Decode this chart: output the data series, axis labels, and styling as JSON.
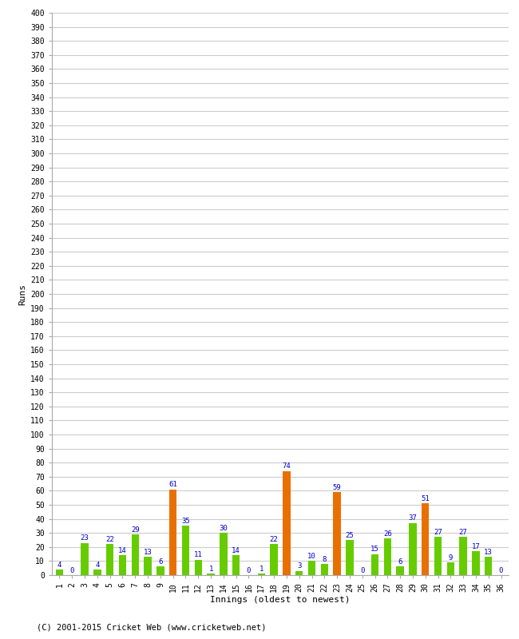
{
  "innings": [
    1,
    2,
    3,
    4,
    5,
    6,
    7,
    8,
    9,
    10,
    11,
    12,
    13,
    14,
    15,
    16,
    17,
    18,
    19,
    20,
    21,
    22,
    23,
    24,
    25,
    26,
    27,
    28,
    29,
    30,
    31,
    32,
    33,
    34,
    35,
    36
  ],
  "values": [
    4,
    0,
    23,
    4,
    22,
    14,
    29,
    13,
    6,
    61,
    35,
    11,
    1,
    30,
    14,
    0,
    1,
    22,
    74,
    3,
    10,
    8,
    59,
    25,
    0,
    15,
    26,
    6,
    37,
    51,
    27,
    9,
    27,
    17,
    13,
    0
  ],
  "colors": [
    "#66cc00",
    "#66cc00",
    "#66cc00",
    "#66cc00",
    "#66cc00",
    "#66cc00",
    "#66cc00",
    "#66cc00",
    "#66cc00",
    "#e87000",
    "#66cc00",
    "#66cc00",
    "#66cc00",
    "#66cc00",
    "#66cc00",
    "#66cc00",
    "#66cc00",
    "#66cc00",
    "#e87000",
    "#66cc00",
    "#66cc00",
    "#66cc00",
    "#e87000",
    "#66cc00",
    "#66cc00",
    "#66cc00",
    "#66cc00",
    "#66cc00",
    "#66cc00",
    "#e87000",
    "#66cc00",
    "#66cc00",
    "#66cc00",
    "#66cc00",
    "#66cc00",
    "#66cc00"
  ],
  "xlabel": "Innings (oldest to newest)",
  "ylabel": "Runs",
  "ytick_step": 10,
  "ylim": [
    0,
    400
  ],
  "label_color": "#0000cc",
  "bar_width": 0.6,
  "footer": "(C) 2001-2015 Cricket Web (www.cricketweb.net)",
  "bg_color": "#ffffff",
  "plot_bg_color": "#ffffff",
  "grid_color": "#cccccc",
  "spine_color": "#aaaaaa"
}
